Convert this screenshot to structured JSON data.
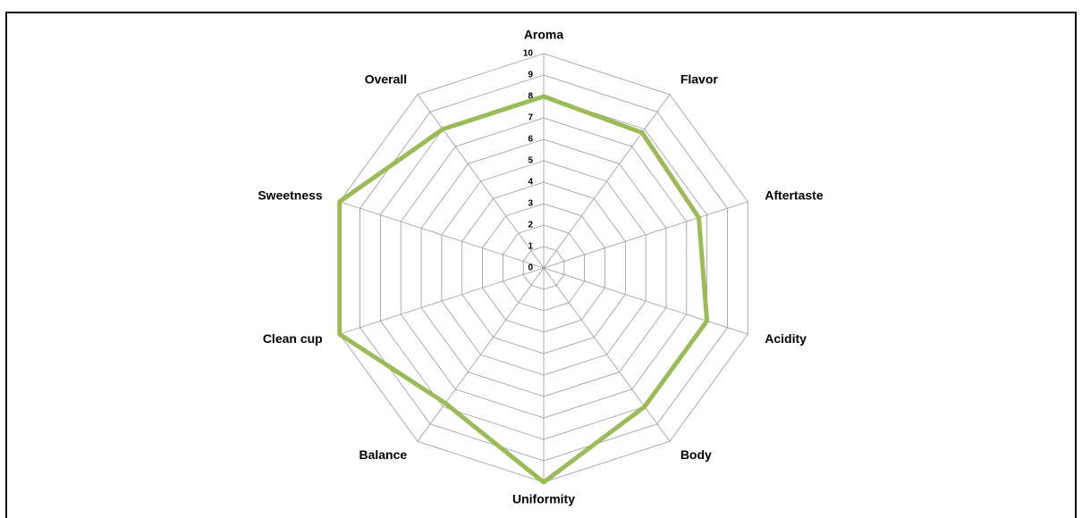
{
  "chart_data": {
    "type": "radar",
    "categories": [
      "Aroma",
      "Flavor",
      "Aftertaste",
      "Acidity",
      "Body",
      "Uniformity",
      "Balance",
      "Clean cup",
      "Sweetness",
      "Overall"
    ],
    "values": [
      8,
      7.8,
      7.6,
      8,
      8,
      10,
      7.8,
      10,
      10,
      8
    ],
    "color": "#9bbb59",
    "ylim": [
      0,
      10
    ],
    "yticks": [
      0,
      1,
      2,
      3,
      4,
      5,
      6,
      7,
      8,
      9,
      10
    ],
    "grid": true
  }
}
